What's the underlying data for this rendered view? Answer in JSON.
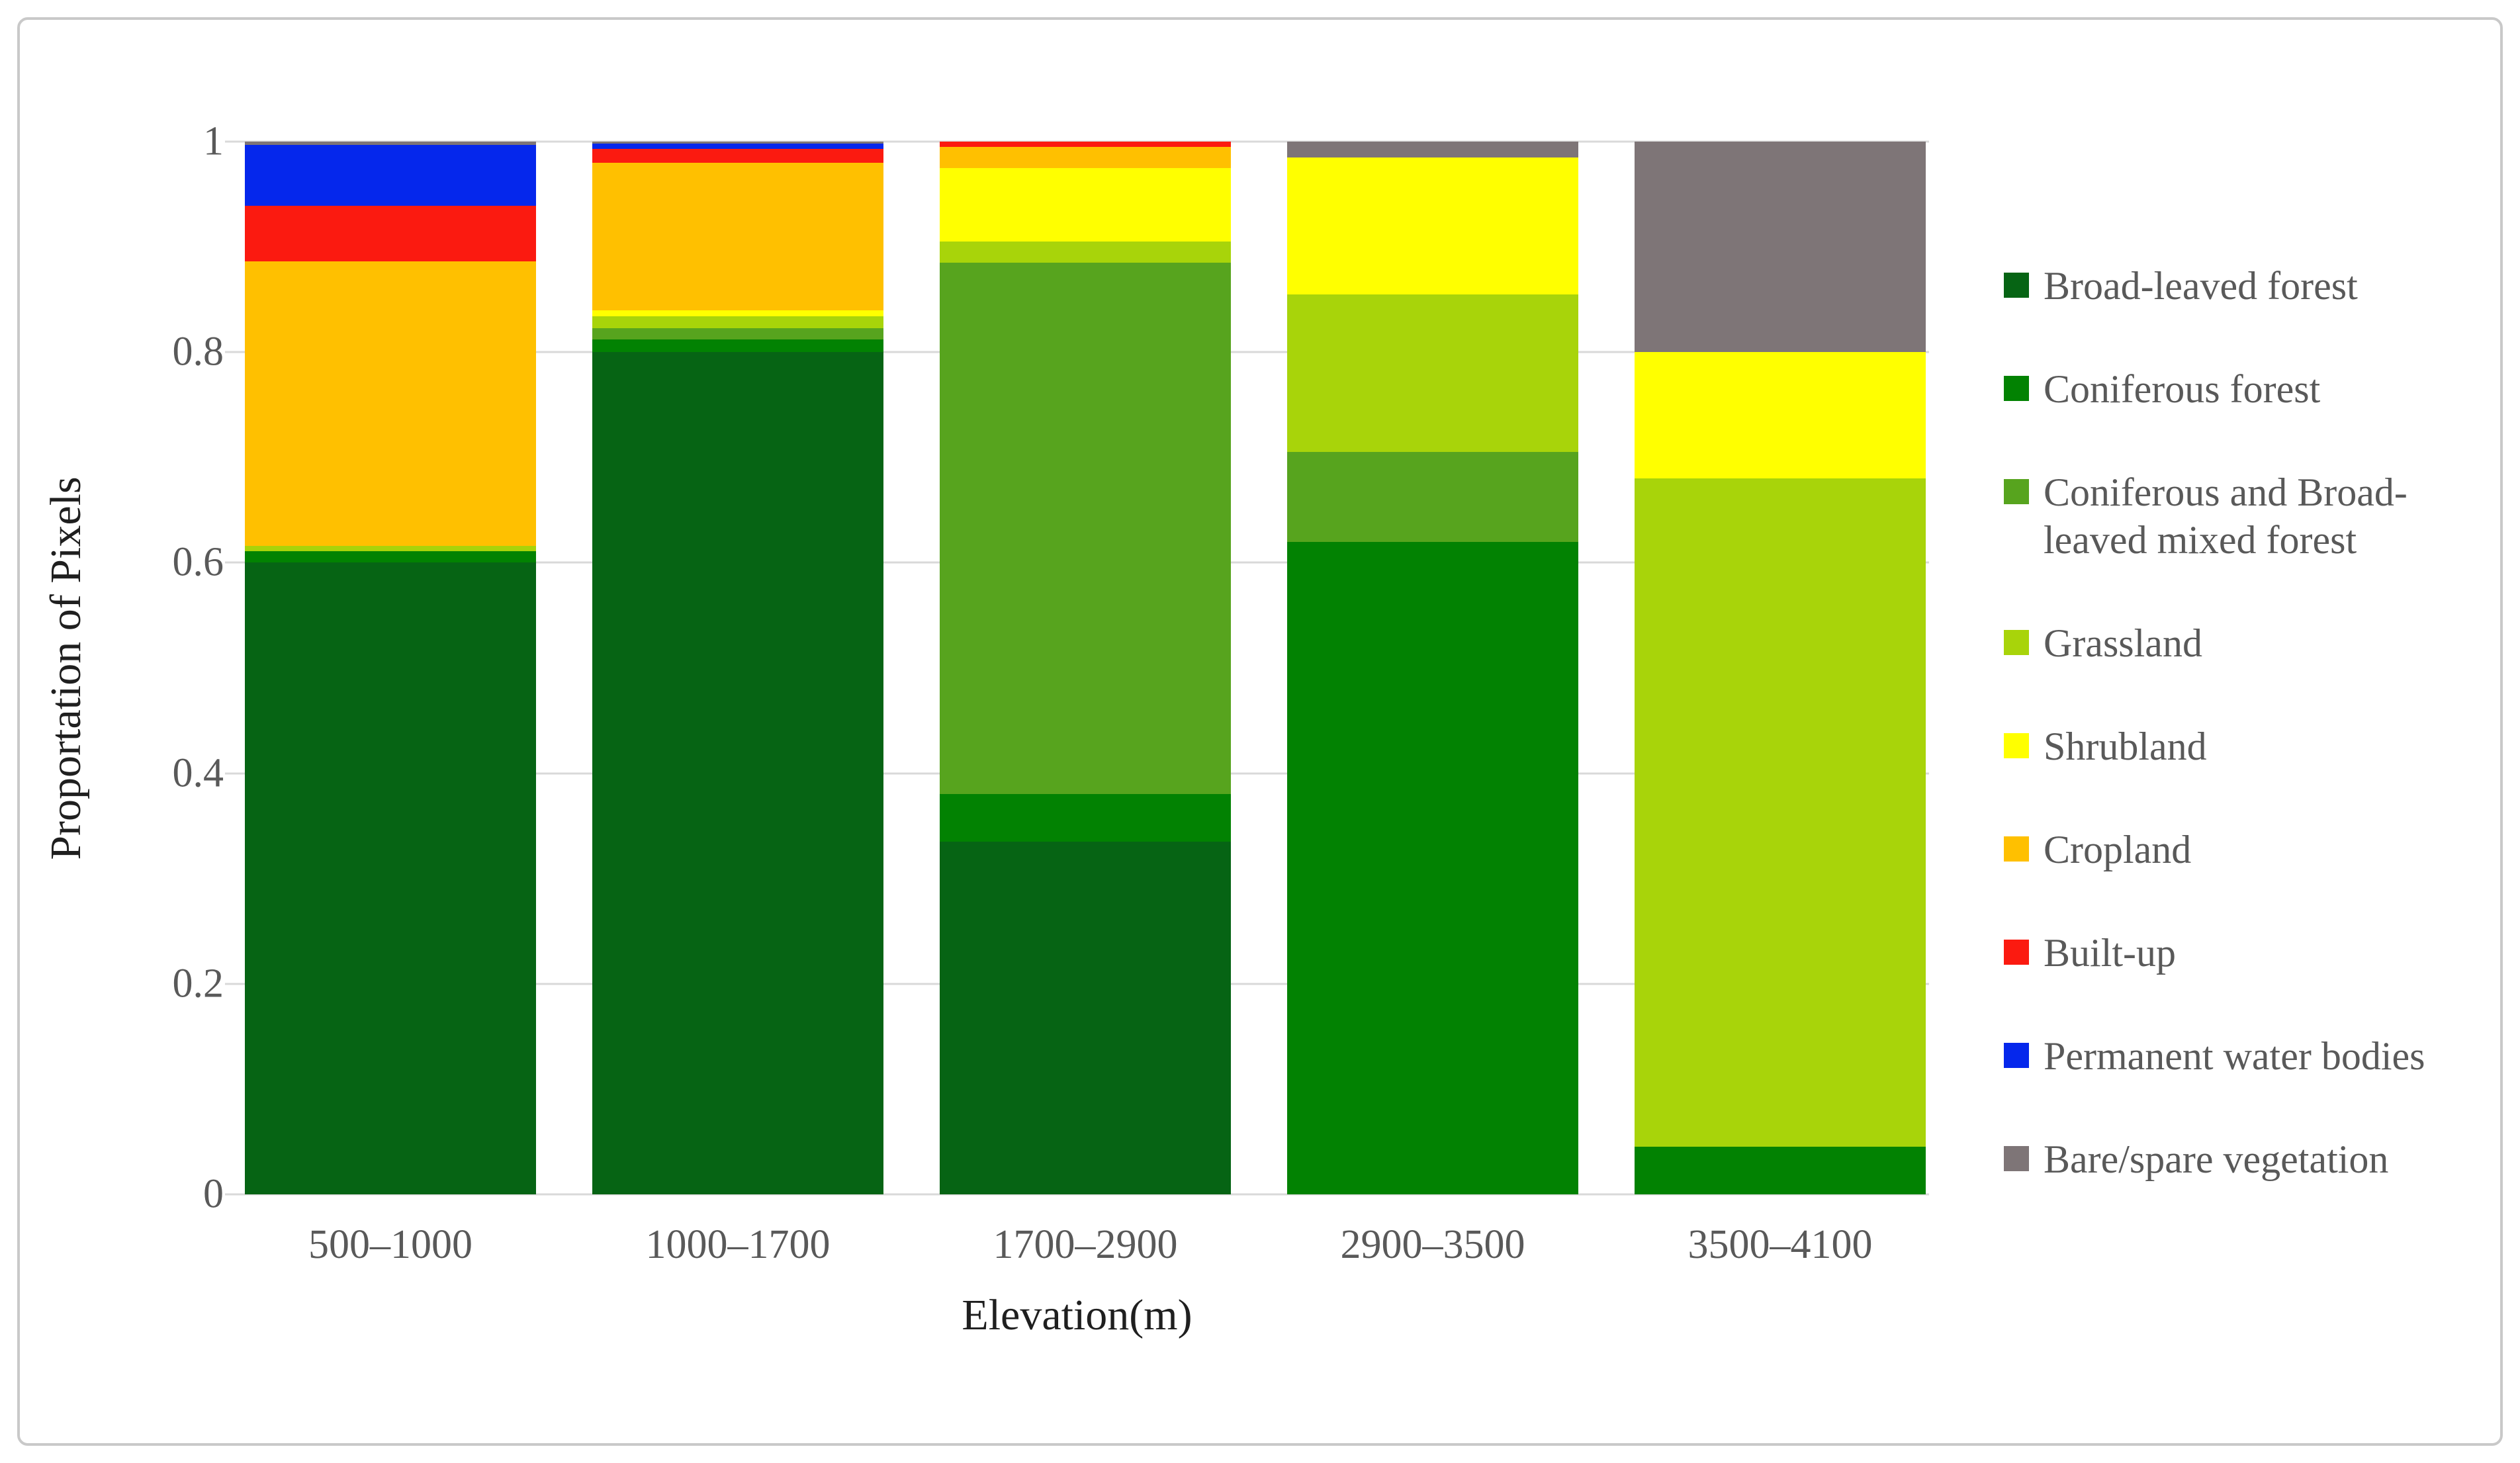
{
  "figure": {
    "background": "#ffffff",
    "border_color": "#c9c9c9"
  },
  "style_colors": {
    "gridline": "#d9d9d9",
    "axis_tick_text": "#595959",
    "axis_title_text": "#1f1f1f",
    "legend_text": "#595959"
  },
  "chart_data": {
    "type": "bar",
    "stacked": true,
    "title": "",
    "xlabel": "Elevation(m)",
    "ylabel": "Proportation of Pixels",
    "categories": [
      "500–1000",
      "1000–1700",
      "1700–2900",
      "2900–3500",
      "3500–4100"
    ],
    "ylim": [
      0,
      1
    ],
    "grid": "horizontal",
    "legend_position": "right",
    "stack_order": "bottom-to-top",
    "yticks": [
      {
        "v": 0,
        "label": "0"
      },
      {
        "v": 0.2,
        "label": "0.2"
      },
      {
        "v": 0.4,
        "label": "0.4"
      },
      {
        "v": 0.6,
        "label": "0.6"
      },
      {
        "v": 0.8,
        "label": "0.8"
      },
      {
        "v": 1,
        "label": "1"
      }
    ],
    "series": [
      {
        "name": "Broad-leaved forest",
        "color": "#066414",
        "values": [
          0.6,
          0.8,
          0.335,
          0.0,
          0.0
        ]
      },
      {
        "name": "Coniferous forest",
        "color": "#028202",
        "values": [
          0.011,
          0.012,
          0.045,
          0.62,
          0.045
        ]
      },
      {
        "name": "Coniferous and Broad-leaved mixed forest",
        "color": "#57a41e",
        "values": [
          0.0,
          0.011,
          0.505,
          0.085,
          0.0
        ]
      },
      {
        "name": "Grassland",
        "color": "#a8d40a",
        "values": [
          0.005,
          0.011,
          0.02,
          0.15,
          0.635
        ]
      },
      {
        "name": "Shrubland",
        "color": "#ffff00",
        "values": [
          0.0,
          0.006,
          0.07,
          0.13,
          0.12
        ]
      },
      {
        "name": "Cropland",
        "color": "#ffc000",
        "values": [
          0.27,
          0.14,
          0.02,
          0.0,
          0.0
        ]
      },
      {
        "name": "Built-up",
        "color": "#fb1a10",
        "values": [
          0.053,
          0.013,
          0.005,
          0.0,
          0.0
        ]
      },
      {
        "name": "Permanent water bodies",
        "color": "#0527ec",
        "values": [
          0.058,
          0.005,
          0.0,
          0.0,
          0.0
        ]
      },
      {
        "name": "Bare/spare vegetation",
        "color": "#7e7577",
        "values": [
          0.003,
          0.002,
          0.0,
          0.015,
          0.2
        ]
      }
    ]
  }
}
